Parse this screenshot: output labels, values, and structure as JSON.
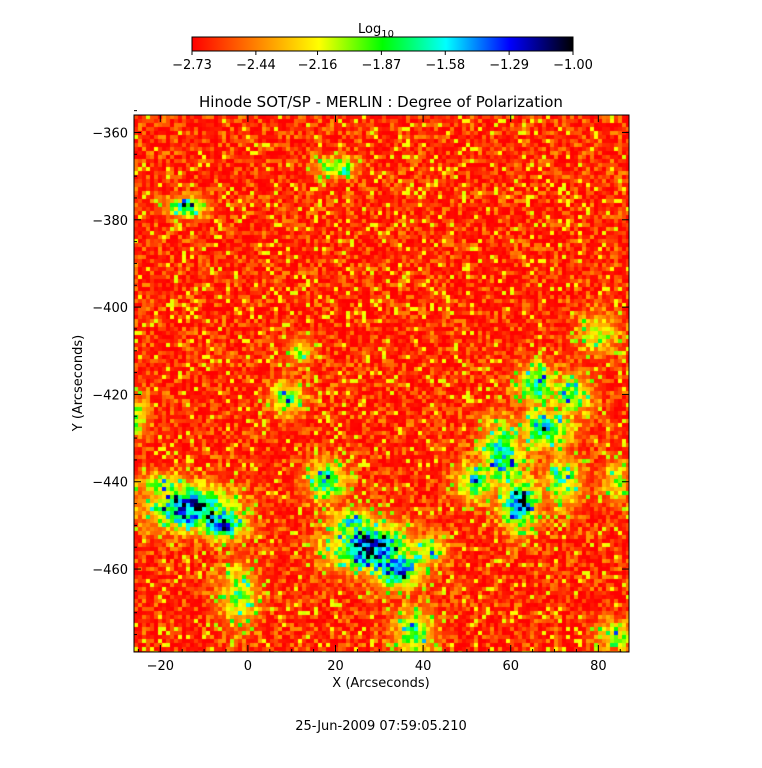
{
  "chart_data": {
    "type": "heatmap",
    "title": "Hinode SOT/SP - MERLIN : Degree of Polarization",
    "xlabel": "X (Arcseconds)",
    "ylabel": "Y (Arcseconds)",
    "xlim": [
      -26,
      87
    ],
    "ylim": [
      -479,
      -356
    ],
    "x_ticks": [
      {
        "value": -20,
        "label": "−20"
      },
      {
        "value": 0,
        "label": "0"
      },
      {
        "value": 20,
        "label": "20"
      },
      {
        "value": 40,
        "label": "40"
      },
      {
        "value": 60,
        "label": "60"
      },
      {
        "value": 80,
        "label": "80"
      }
    ],
    "y_ticks": [
      {
        "value": -360,
        "label": "−360"
      },
      {
        "value": -380,
        "label": "−380"
      },
      {
        "value": -400,
        "label": "−400"
      },
      {
        "value": -420,
        "label": "−420"
      },
      {
        "value": -440,
        "label": "−440"
      },
      {
        "value": -460,
        "label": "−460"
      }
    ],
    "colorbar": {
      "title": "Log",
      "title_subscript": "10",
      "range": [
        -2.73,
        -1.0
      ],
      "ticks": [
        {
          "value": -2.73,
          "label": "−2.73"
        },
        {
          "value": -2.44,
          "label": "−2.44"
        },
        {
          "value": -2.16,
          "label": "−2.16"
        },
        {
          "value": -1.87,
          "label": "−1.87"
        },
        {
          "value": -1.58,
          "label": "−1.58"
        },
        {
          "value": -1.29,
          "label": "−1.29"
        },
        {
          "value": -1.0,
          "label": "−1.00"
        }
      ],
      "stops": [
        "#ff0000",
        "#ff8000",
        "#ffff00",
        "#00ff00",
        "#00ffff",
        "#0000ff",
        "#000000"
      ]
    },
    "strong_regions": [
      {
        "x": -13,
        "y": -446,
        "rx": 6,
        "ry": 3.2,
        "level": 1.0
      },
      {
        "x": -6,
        "y": -450,
        "rx": 3.5,
        "ry": 2.2,
        "level": 0.9
      },
      {
        "x": -19,
        "y": -441,
        "rx": 4,
        "ry": 2,
        "level": 0.5
      },
      {
        "x": -2,
        "y": -466,
        "rx": 3,
        "ry": 5,
        "level": 0.45
      },
      {
        "x": 18,
        "y": -440,
        "rx": 3,
        "ry": 3,
        "level": 0.65
      },
      {
        "x": 24,
        "y": -450,
        "rx": 4,
        "ry": 2.5,
        "level": 0.6
      },
      {
        "x": 28,
        "y": -455,
        "rx": 6,
        "ry": 3.5,
        "level": 1.0
      },
      {
        "x": 34,
        "y": -460,
        "rx": 4,
        "ry": 3,
        "level": 0.85
      },
      {
        "x": 41,
        "y": -456,
        "rx": 3,
        "ry": 2,
        "level": 0.5
      },
      {
        "x": 38,
        "y": -475,
        "rx": 3,
        "ry": 4,
        "level": 0.55
      },
      {
        "x": 52,
        "y": -440,
        "rx": 3,
        "ry": 3,
        "level": 0.6
      },
      {
        "x": 58,
        "y": -434,
        "rx": 3,
        "ry": 5,
        "level": 0.75
      },
      {
        "x": 62,
        "y": -445,
        "rx": 3,
        "ry": 4,
        "level": 0.8
      },
      {
        "x": 68,
        "y": -428,
        "rx": 4,
        "ry": 3,
        "level": 0.7
      },
      {
        "x": 66,
        "y": -418,
        "rx": 3,
        "ry": 3,
        "level": 0.7
      },
      {
        "x": 74,
        "y": -420,
        "rx": 3,
        "ry": 3,
        "level": 0.55
      },
      {
        "x": 80,
        "y": -406,
        "rx": 3,
        "ry": 3,
        "level": 0.4
      },
      {
        "x": 72,
        "y": -440,
        "rx": 3,
        "ry": 4,
        "level": 0.5
      },
      {
        "x": -14,
        "y": -377,
        "rx": 3,
        "ry": 1.5,
        "level": 0.7
      },
      {
        "x": 20,
        "y": -368,
        "rx": 3,
        "ry": 1.5,
        "level": 0.6
      },
      {
        "x": 9,
        "y": -421,
        "rx": 2.5,
        "ry": 2.5,
        "level": 0.55
      },
      {
        "x": 12,
        "y": -410,
        "rx": 2,
        "ry": 2,
        "level": 0.4
      },
      {
        "x": -26,
        "y": -425,
        "rx": 2,
        "ry": 3,
        "level": 0.5
      },
      {
        "x": 84,
        "y": -475,
        "rx": 3,
        "ry": 2,
        "level": 0.45
      },
      {
        "x": 84,
        "y": -440,
        "rx": 2,
        "ry": 3,
        "level": 0.4
      }
    ]
  },
  "footer": {
    "timestamp": "25-Jun-2009 07:59:05.210"
  }
}
